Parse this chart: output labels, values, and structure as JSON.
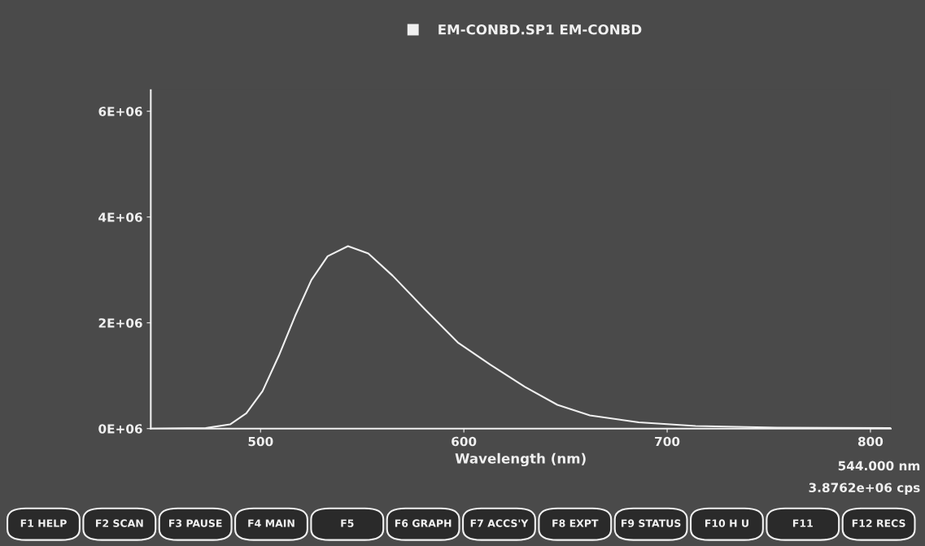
{
  "chart_data": {
    "type": "line",
    "xlabel": "Wavelength (nm)",
    "x": [
      446,
      473,
      485,
      493,
      501,
      509,
      517,
      525,
      533,
      543,
      553,
      565,
      581,
      597,
      613,
      630,
      646,
      662,
      686,
      714,
      754,
      810
    ],
    "series": [
      {
        "name": "EM-CONBD.SP1 EM-CONBD",
        "color": "#f0f0f0",
        "values": [
          0,
          10000,
          80000,
          290000,
          710000,
          1380000,
          2130000,
          2810000,
          3260000,
          3450000,
          3310000,
          2890000,
          2250000,
          1630000,
          1210000,
          790000,
          450000,
          250000,
          120000,
          50000,
          20000,
          10000
        ]
      }
    ],
    "xlim": [
      446,
      810
    ],
    "xticks": [
      500,
      600,
      700,
      800
    ],
    "ylim": [
      0,
      6400000
    ],
    "yticks": [
      {
        "value": 0,
        "label": "0E+06"
      },
      {
        "value": 2000000,
        "label": "2E+06"
      },
      {
        "value": 4000000,
        "label": "4E+06"
      },
      {
        "value": 6000000,
        "label": "6E+06"
      }
    ],
    "legend": "top",
    "grid": false,
    "marker": "none",
    "line_style": "solid",
    "annotations": [
      "544.000 nm",
      "3.8762e+06 cps",
      "F1 HELP",
      "F2 SCAN",
      "F3 PAUSE",
      "F4 MAIN",
      "F5",
      "F6 GRAPH",
      "F7 ACCS'Y",
      "F8 EXPT",
      "F9 STATUS",
      "F10 H U",
      "F11",
      "F12 RECS"
    ]
  }
}
